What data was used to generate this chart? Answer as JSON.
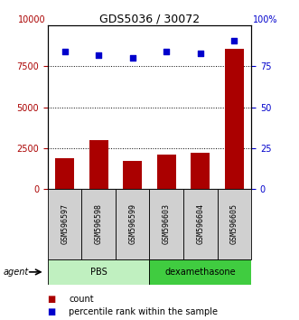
{
  "title": "GDS5036 / 30072",
  "samples": [
    "GSM596597",
    "GSM596598",
    "GSM596599",
    "GSM596603",
    "GSM596604",
    "GSM596605"
  ],
  "counts": [
    1900,
    3000,
    1700,
    2100,
    2200,
    8600
  ],
  "percentiles": [
    84,
    82,
    80,
    84,
    83,
    91
  ],
  "groups": [
    {
      "label": "PBS",
      "color_light": "#c0f0c0",
      "color_dark": "#c0f0c0",
      "start": 0,
      "end": 3
    },
    {
      "label": "dexamethasone",
      "color_light": "#40cc40",
      "color_dark": "#40cc40",
      "start": 3,
      "end": 6
    }
  ],
  "bar_color": "#AA0000",
  "dot_color": "#0000CC",
  "sample_box_color": "#d0d0d0",
  "ylim_left": [
    0,
    10000
  ],
  "ylim_right": [
    0,
    100
  ],
  "yticks_left": [
    0,
    2500,
    5000,
    7500
  ],
  "yticks_right": [
    0,
    25,
    50,
    75
  ],
  "ytick_labels_left": [
    "0",
    "2500",
    "5000",
    "7500"
  ],
  "ytick_labels_right": [
    "0",
    "25",
    "50",
    "75"
  ],
  "right_top_label": "100%",
  "left_top_label": "10000",
  "background_color": "#ffffff",
  "agent_label": "agent",
  "legend_count_label": "count",
  "legend_pct_label": "percentile rank within the sample"
}
